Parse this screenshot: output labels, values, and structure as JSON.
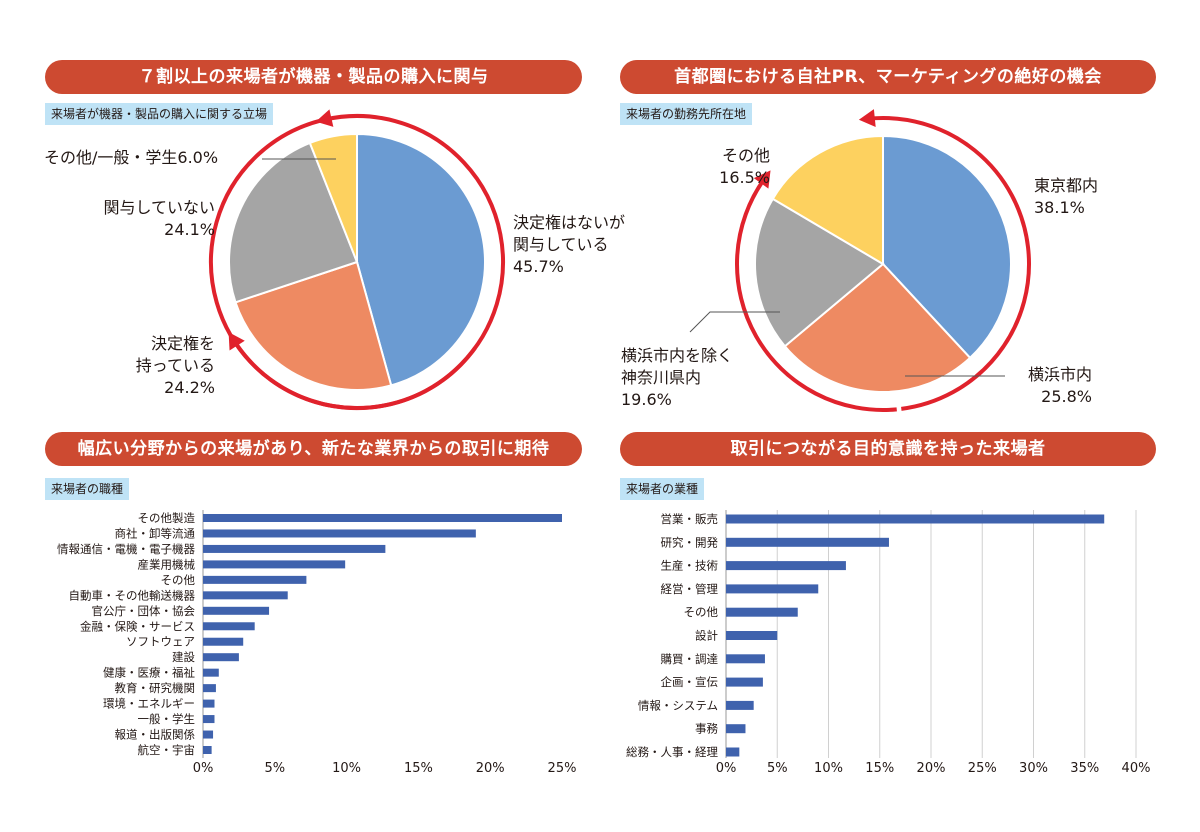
{
  "colors": {
    "banner": "#cd4a31",
    "tag": "#bfe3f6",
    "blue": "#6b9bd2",
    "orange": "#ee8a62",
    "gray": "#a5a5a5",
    "yellow": "#fdd15f",
    "bar": "#3f62ad",
    "arrow": "#e0222c"
  },
  "q1": {
    "banner": "７割以上の来場者が機器・製品の購入に関与",
    "tag": "来場者が機器・製品の購入に関する立場",
    "labels": {
      "s0": [
        "決定権はないが",
        "関与している",
        "45.7%"
      ],
      "s1": [
        "決定権を",
        "持っている",
        "24.2%"
      ],
      "s2": [
        "関与していない",
        "24.1%"
      ],
      "s3": [
        "その他/一般・学生6.0%"
      ]
    }
  },
  "q2": {
    "banner": "首都圏における自社PR、マーケティングの絶好の機会",
    "tag": "来場者の勤務先所在地",
    "labels": {
      "s0": [
        "東京都内",
        "38.1%"
      ],
      "s1": [
        "横浜市内",
        "25.8%"
      ],
      "s2": [
        "横浜市内を除く",
        "神奈川県内",
        "19.6%"
      ],
      "s3": [
        "その他",
        "16.5%"
      ]
    }
  },
  "q3": {
    "banner": "幅広い分野からの来場があり、新たな業界からの取引に期待",
    "tag": "来場者の職種"
  },
  "q4": {
    "banner": "取引につながる目的意識を持った来場者",
    "tag": "来場者の業種"
  },
  "chart_data": [
    {
      "type": "pie",
      "slices": [
        {
          "label": "決定権はないが関与している",
          "value": 45.7,
          "color": "#6b9bd2"
        },
        {
          "label": "決定権を持っている",
          "value": 24.2,
          "color": "#ee8a62"
        },
        {
          "label": "関与していない",
          "value": 24.1,
          "color": "#a5a5a5"
        },
        {
          "label": "その他/一般・学生",
          "value": 6.0,
          "color": "#fdd15f"
        }
      ]
    },
    {
      "type": "pie",
      "slices": [
        {
          "label": "東京都内",
          "value": 38.1,
          "color": "#6b9bd2"
        },
        {
          "label": "横浜市内",
          "value": 25.8,
          "color": "#ee8a62"
        },
        {
          "label": "横浜市内を除く神奈川県内",
          "value": 19.6,
          "color": "#a5a5a5"
        },
        {
          "label": "その他",
          "value": 16.5,
          "color": "#fdd15f"
        }
      ]
    },
    {
      "type": "bar",
      "orientation": "horizontal",
      "categories": [
        "その他製造",
        "商社・卸等流通",
        "情報通信・電機・電子機器",
        "産業用機械",
        "その他",
        "自動車・その他輸送機器",
        "官公庁・団体・協会",
        "金融・保険・サービス",
        "ソフトウェア",
        "建設",
        "健康・医療・福祉",
        "教育・研究機関",
        "環境・エネルギー",
        "一般・学生",
        "報道・出版関係",
        "航空・宇宙"
      ],
      "values": [
        25.0,
        19.0,
        12.7,
        9.9,
        7.2,
        5.9,
        4.6,
        3.6,
        2.8,
        2.5,
        1.1,
        0.9,
        0.8,
        0.8,
        0.7,
        0.6
      ],
      "xlim": [
        0,
        25
      ],
      "xticks": [
        "0%",
        "5%",
        "10%",
        "15%",
        "20%",
        "25%"
      ],
      "grid": false
    },
    {
      "type": "bar",
      "orientation": "horizontal",
      "categories": [
        "営業・販売",
        "研究・開発",
        "生産・技術",
        "経営・管理",
        "その他",
        "設計",
        "購買・調達",
        "企画・宣伝",
        "情報・システム",
        "事務",
        "総務・人事・経理"
      ],
      "values": [
        36.9,
        15.9,
        11.7,
        9.0,
        7.0,
        5.0,
        3.8,
        3.6,
        2.7,
        1.9,
        1.3
      ],
      "xlim": [
        0,
        40
      ],
      "xticks": [
        "0%",
        "5%",
        "10%",
        "15%",
        "20%",
        "25%",
        "30%",
        "35%",
        "40%"
      ],
      "grid": true
    }
  ]
}
